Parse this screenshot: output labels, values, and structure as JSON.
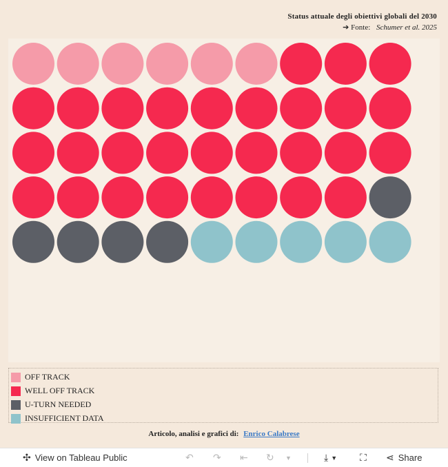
{
  "header": {
    "title": "Status attuale degli obiettivi globali del 2030",
    "source_prefix": "➔ Fonte:",
    "source_name": "Schumer et al. 2025"
  },
  "chart_data": {
    "type": "waffle",
    "columns": 9,
    "categories": [
      "OFF TRACK",
      "WELL OFF TRACK",
      "U-TURN NEEDED",
      "INSUFFICIENT DATA"
    ],
    "values": [
      6,
      29,
      5,
      5
    ],
    "colors": [
      "#f59ba9",
      "#f5294f",
      "#5c5f66",
      "#8fc3cb"
    ]
  },
  "legend": {
    "items": [
      {
        "label": "OFF TRACK",
        "color": "#f59ba9"
      },
      {
        "label": "WELL OFF TRACK",
        "color": "#f5294f"
      },
      {
        "label": "U-TURN NEEDED",
        "color": "#5c5f66"
      },
      {
        "label": "INSUFFICIENT DATA",
        "color": "#8fc3cb"
      }
    ]
  },
  "credit": {
    "prefix": "Articolo, analisi e grafici di:",
    "author": "Enrico Calabrese"
  },
  "toolbar": {
    "view_label": "View on Tableau Public",
    "share_label": "Share",
    "icons": {
      "view": "tableau-logo-icon",
      "undo": "undo-icon",
      "redo": "redo-icon",
      "revert": "revert-icon",
      "refresh": "refresh-icon",
      "pause": "dropdown-icon",
      "download": "download-icon",
      "fullscreen": "fullscreen-icon",
      "share": "share-icon"
    }
  }
}
